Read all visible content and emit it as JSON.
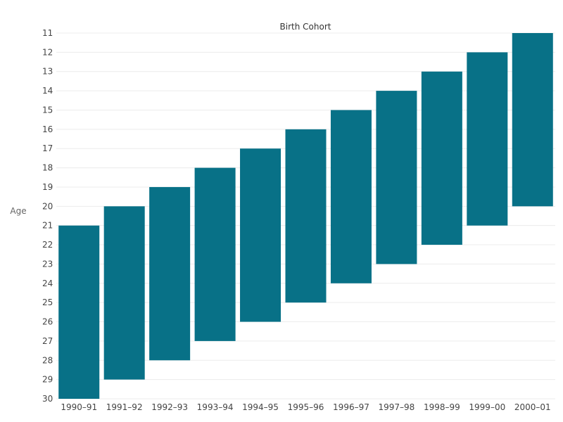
{
  "chart_data": {
    "type": "bar",
    "subtype": "floating-range",
    "title": "Birth Cohort",
    "ylabel": "Age",
    "xlabel": "",
    "y_inverted": true,
    "ylim": [
      11,
      30
    ],
    "yticks": [
      "11",
      "12",
      "13",
      "14",
      "15",
      "16",
      "17",
      "18",
      "19",
      "20",
      "21",
      "22",
      "23",
      "24",
      "25",
      "26",
      "27",
      "28",
      "29",
      "30"
    ],
    "grid": "horizontal",
    "categories": [
      "1990–91",
      "1991–92",
      "1992–93",
      "1993–94",
      "1994–95",
      "1995–96",
      "1996–97",
      "1997–98",
      "1998–99",
      "1999–00",
      "2000–01"
    ],
    "ranges": [
      [
        21,
        30
      ],
      [
        20,
        29
      ],
      [
        19,
        28
      ],
      [
        18,
        27
      ],
      [
        17,
        26
      ],
      [
        16,
        25
      ],
      [
        15,
        24
      ],
      [
        14,
        23
      ],
      [
        13,
        22
      ],
      [
        12,
        21
      ],
      [
        11,
        20
      ]
    ],
    "colors": {
      "bar": "#087187"
    }
  }
}
